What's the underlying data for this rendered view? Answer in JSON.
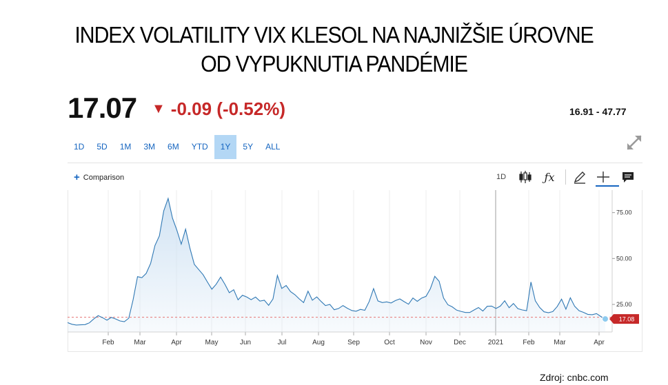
{
  "title_lines": [
    "INDEX VOLATILITY VIX KLESOL NA NAJNIŽŠIE ÚROVNE",
    "OD VYPUKNUTIA PANDÉMIE"
  ],
  "quote": {
    "price": "17.07",
    "change": "-0.09 (-0.52%)",
    "range": "16.91 - 47.77",
    "change_color": "#c62828"
  },
  "periods": [
    {
      "label": "1D",
      "active": false
    },
    {
      "label": "5D",
      "active": false
    },
    {
      "label": "1M",
      "active": false
    },
    {
      "label": "3M",
      "active": false
    },
    {
      "label": "6M",
      "active": false
    },
    {
      "label": "YTD",
      "active": false
    },
    {
      "label": "1Y",
      "active": true
    },
    {
      "label": "5Y",
      "active": false
    },
    {
      "label": "ALL",
      "active": false
    }
  ],
  "toolbar": {
    "comparison_label": "Comparison",
    "interval_label": "1D",
    "icons": [
      "candlestick-icon",
      "function-icon",
      "pencil-icon",
      "crosshair-icon",
      "comment-icon"
    ]
  },
  "source": "Zdroj: cnbc.com",
  "chart_data": {
    "type": "area",
    "title": "",
    "xlabel": "",
    "ylabel": "",
    "x_ticks": [
      "Feb",
      "Mar",
      "Apr",
      "May",
      "Jun",
      "Jul",
      "Aug",
      "Sep",
      "Oct",
      "Nov",
      "Dec",
      "2021",
      "Feb",
      "Mar",
      "Apr"
    ],
    "y_ticks": [
      "75.00",
      "50.00",
      "25.00"
    ],
    "ylim": [
      10,
      85
    ],
    "grid": "vertical",
    "last_value_label": "17.08",
    "previous_close_line": 18,
    "colors": {
      "line": "#2f78b4",
      "fill": "#cfe2f3",
      "last_badge": "#c62828"
    },
    "series": [
      {
        "values": [
          15.1,
          14.2,
          13.8,
          13.9,
          14.0,
          15.0,
          17.1,
          18.9,
          17.8,
          16.4,
          17.9,
          17.1,
          16.0,
          15.6,
          17.5,
          27.6,
          40.1,
          39.6,
          41.9,
          47.3,
          57.1,
          62.3,
          75.9,
          82.7,
          72.0,
          65.5,
          57.8,
          66.0,
          55.5,
          46.8,
          44.0,
          41.2,
          37.2,
          33.3,
          36.0,
          39.9,
          35.9,
          31.4,
          33.0,
          27.5,
          30.0,
          29.0,
          27.6,
          29.0,
          26.8,
          27.3,
          24.5,
          28.0,
          40.8,
          33.7,
          35.3,
          32.0,
          30.3,
          28.0,
          26.0,
          32.2,
          27.3,
          29.1,
          26.6,
          24.4,
          25.0,
          22.1,
          22.8,
          24.4,
          22.9,
          21.7,
          21.3,
          22.3,
          21.8,
          26.6,
          33.6,
          26.9,
          26.0,
          26.4,
          25.8,
          27.1,
          28.0,
          26.5,
          25.1,
          28.5,
          26.7,
          28.5,
          29.4,
          33.6,
          40.3,
          37.6,
          28.5,
          24.8,
          23.7,
          21.9,
          21.2,
          20.6,
          20.6,
          22.0,
          23.3,
          21.4,
          24.0,
          24.1,
          22.8,
          24.1,
          27.0,
          23.2,
          25.5,
          22.7,
          22.0,
          21.6,
          37.2,
          27.0,
          23.3,
          21.0,
          20.5,
          21.1,
          23.8,
          27.9,
          22.4,
          28.6,
          24.0,
          21.6,
          20.7,
          19.6,
          19.4,
          20.0,
          18.4,
          17.1
        ]
      }
    ]
  }
}
